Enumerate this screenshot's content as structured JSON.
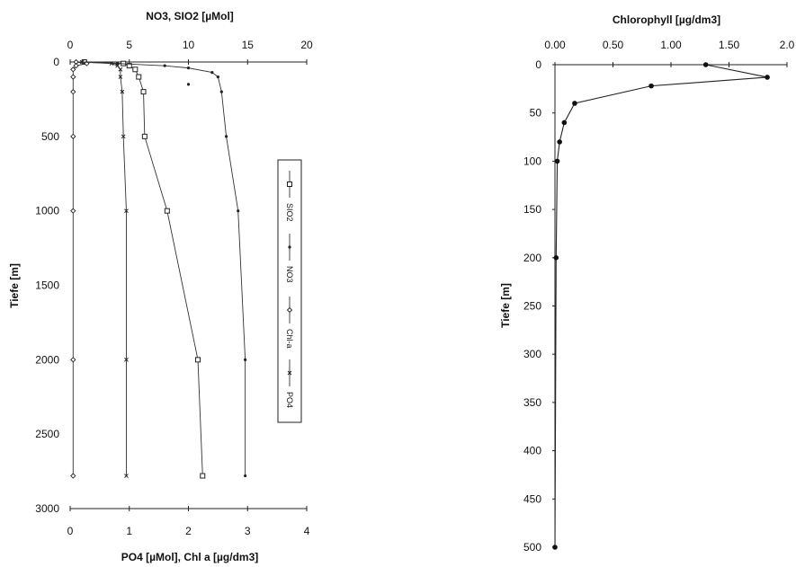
{
  "chart_data": [
    {
      "type": "line",
      "title": "NO3, SIO2 [µMol]",
      "xlabel": "PO4 [µMol], Chl a [µg/dm3]",
      "ylabel": "Tiefe [m]",
      "top_axis": {
        "label": "NO3, SIO2 [µMol]",
        "ticks": [
          "0",
          "5",
          "10",
          "15",
          "20"
        ],
        "range": [
          0,
          20
        ]
      },
      "bottom_axis": {
        "label": "PO4 [µMol], Chl a [µg/dm3]",
        "ticks": [
          "0",
          "1",
          "2",
          "3",
          "4"
        ],
        "range": [
          0,
          4
        ]
      },
      "y_axis": {
        "ticks": [
          "0",
          "500",
          "1000",
          "1500",
          "2000",
          "2500",
          "3000"
        ],
        "range": [
          0,
          3000
        ],
        "inverted": true
      },
      "legend": {
        "entries": [
          "SIO2",
          "NO3",
          "Chl-a",
          "PO4"
        ],
        "placement": "right"
      },
      "series": [
        {
          "name": "SIO2",
          "axis": "top",
          "marker": "square",
          "points": [
            [
              1.2,
              0
            ],
            [
              4.5,
              10
            ],
            [
              5,
              25
            ],
            [
              5.5,
              50
            ],
            [
              5.8,
              100
            ],
            [
              6.2,
              200
            ],
            [
              6.3,
              500
            ],
            [
              8.2,
              1000
            ],
            [
              10.8,
              2000
            ],
            [
              11.2,
              2780
            ]
          ]
        },
        {
          "name": "NO3",
          "axis": "top",
          "marker": "dot",
          "points": [
            [
              0.5,
              0
            ],
            [
              4.0,
              10
            ],
            [
              8.0,
              25
            ],
            [
              10.0,
              40
            ],
            [
              12.0,
              70
            ],
            [
              12.5,
              100
            ],
            [
              12.8,
              200
            ],
            [
              13.2,
              500
            ],
            [
              14.2,
              1000
            ],
            [
              14.8,
              2000
            ],
            [
              14.8,
              2780
            ]
          ]
        },
        {
          "name": "Chl-a",
          "axis": "bottom",
          "marker": "diamond",
          "points": [
            [
              0.1,
              0
            ],
            [
              0.28,
              10
            ],
            [
              0.1,
              25
            ],
            [
              0.05,
              50
            ],
            [
              0.05,
              100
            ],
            [
              0.05,
              200
            ],
            [
              0.05,
              500
            ],
            [
              0.05,
              1000
            ],
            [
              0.05,
              2000
            ],
            [
              0.05,
              2780
            ]
          ]
        },
        {
          "name": "PO4",
          "axis": "bottom",
          "marker": "x",
          "points": [
            [
              0.2,
              0
            ],
            [
              0.7,
              10
            ],
            [
              0.8,
              25
            ],
            [
              0.85,
              50
            ],
            [
              0.85,
              100
            ],
            [
              0.88,
              200
            ],
            [
              0.9,
              500
            ],
            [
              0.95,
              1000
            ],
            [
              0.95,
              2000
            ],
            [
              0.95,
              2780
            ]
          ]
        }
      ],
      "stray_points": [
        [
          2.0,
          150
        ]
      ]
    },
    {
      "type": "line",
      "title": "Chlorophyll [µg/dm3]",
      "xlabel": "",
      "ylabel": "Tiefe [m]",
      "x_axis": {
        "position": "top",
        "ticks": [
          "0.00",
          "0.50",
          "1.00",
          "1.50",
          "2.0"
        ],
        "range": [
          0,
          2.0
        ]
      },
      "y_axis": {
        "ticks": [
          "0",
          "50",
          "100",
          "150",
          "200",
          "250",
          "300",
          "350",
          "400",
          "450",
          "500"
        ],
        "range": [
          0,
          500
        ],
        "inverted": true
      },
      "series": [
        {
          "name": "",
          "marker": "dot",
          "points": [
            [
              1.3,
              0
            ],
            [
              1.83,
              13
            ],
            [
              0.83,
              22
            ],
            [
              0.17,
              40
            ],
            [
              0.08,
              60
            ],
            [
              0.04,
              80
            ],
            [
              0.02,
              100
            ],
            [
              0.01,
              200
            ],
            [
              0.0,
              500
            ]
          ]
        }
      ]
    }
  ]
}
